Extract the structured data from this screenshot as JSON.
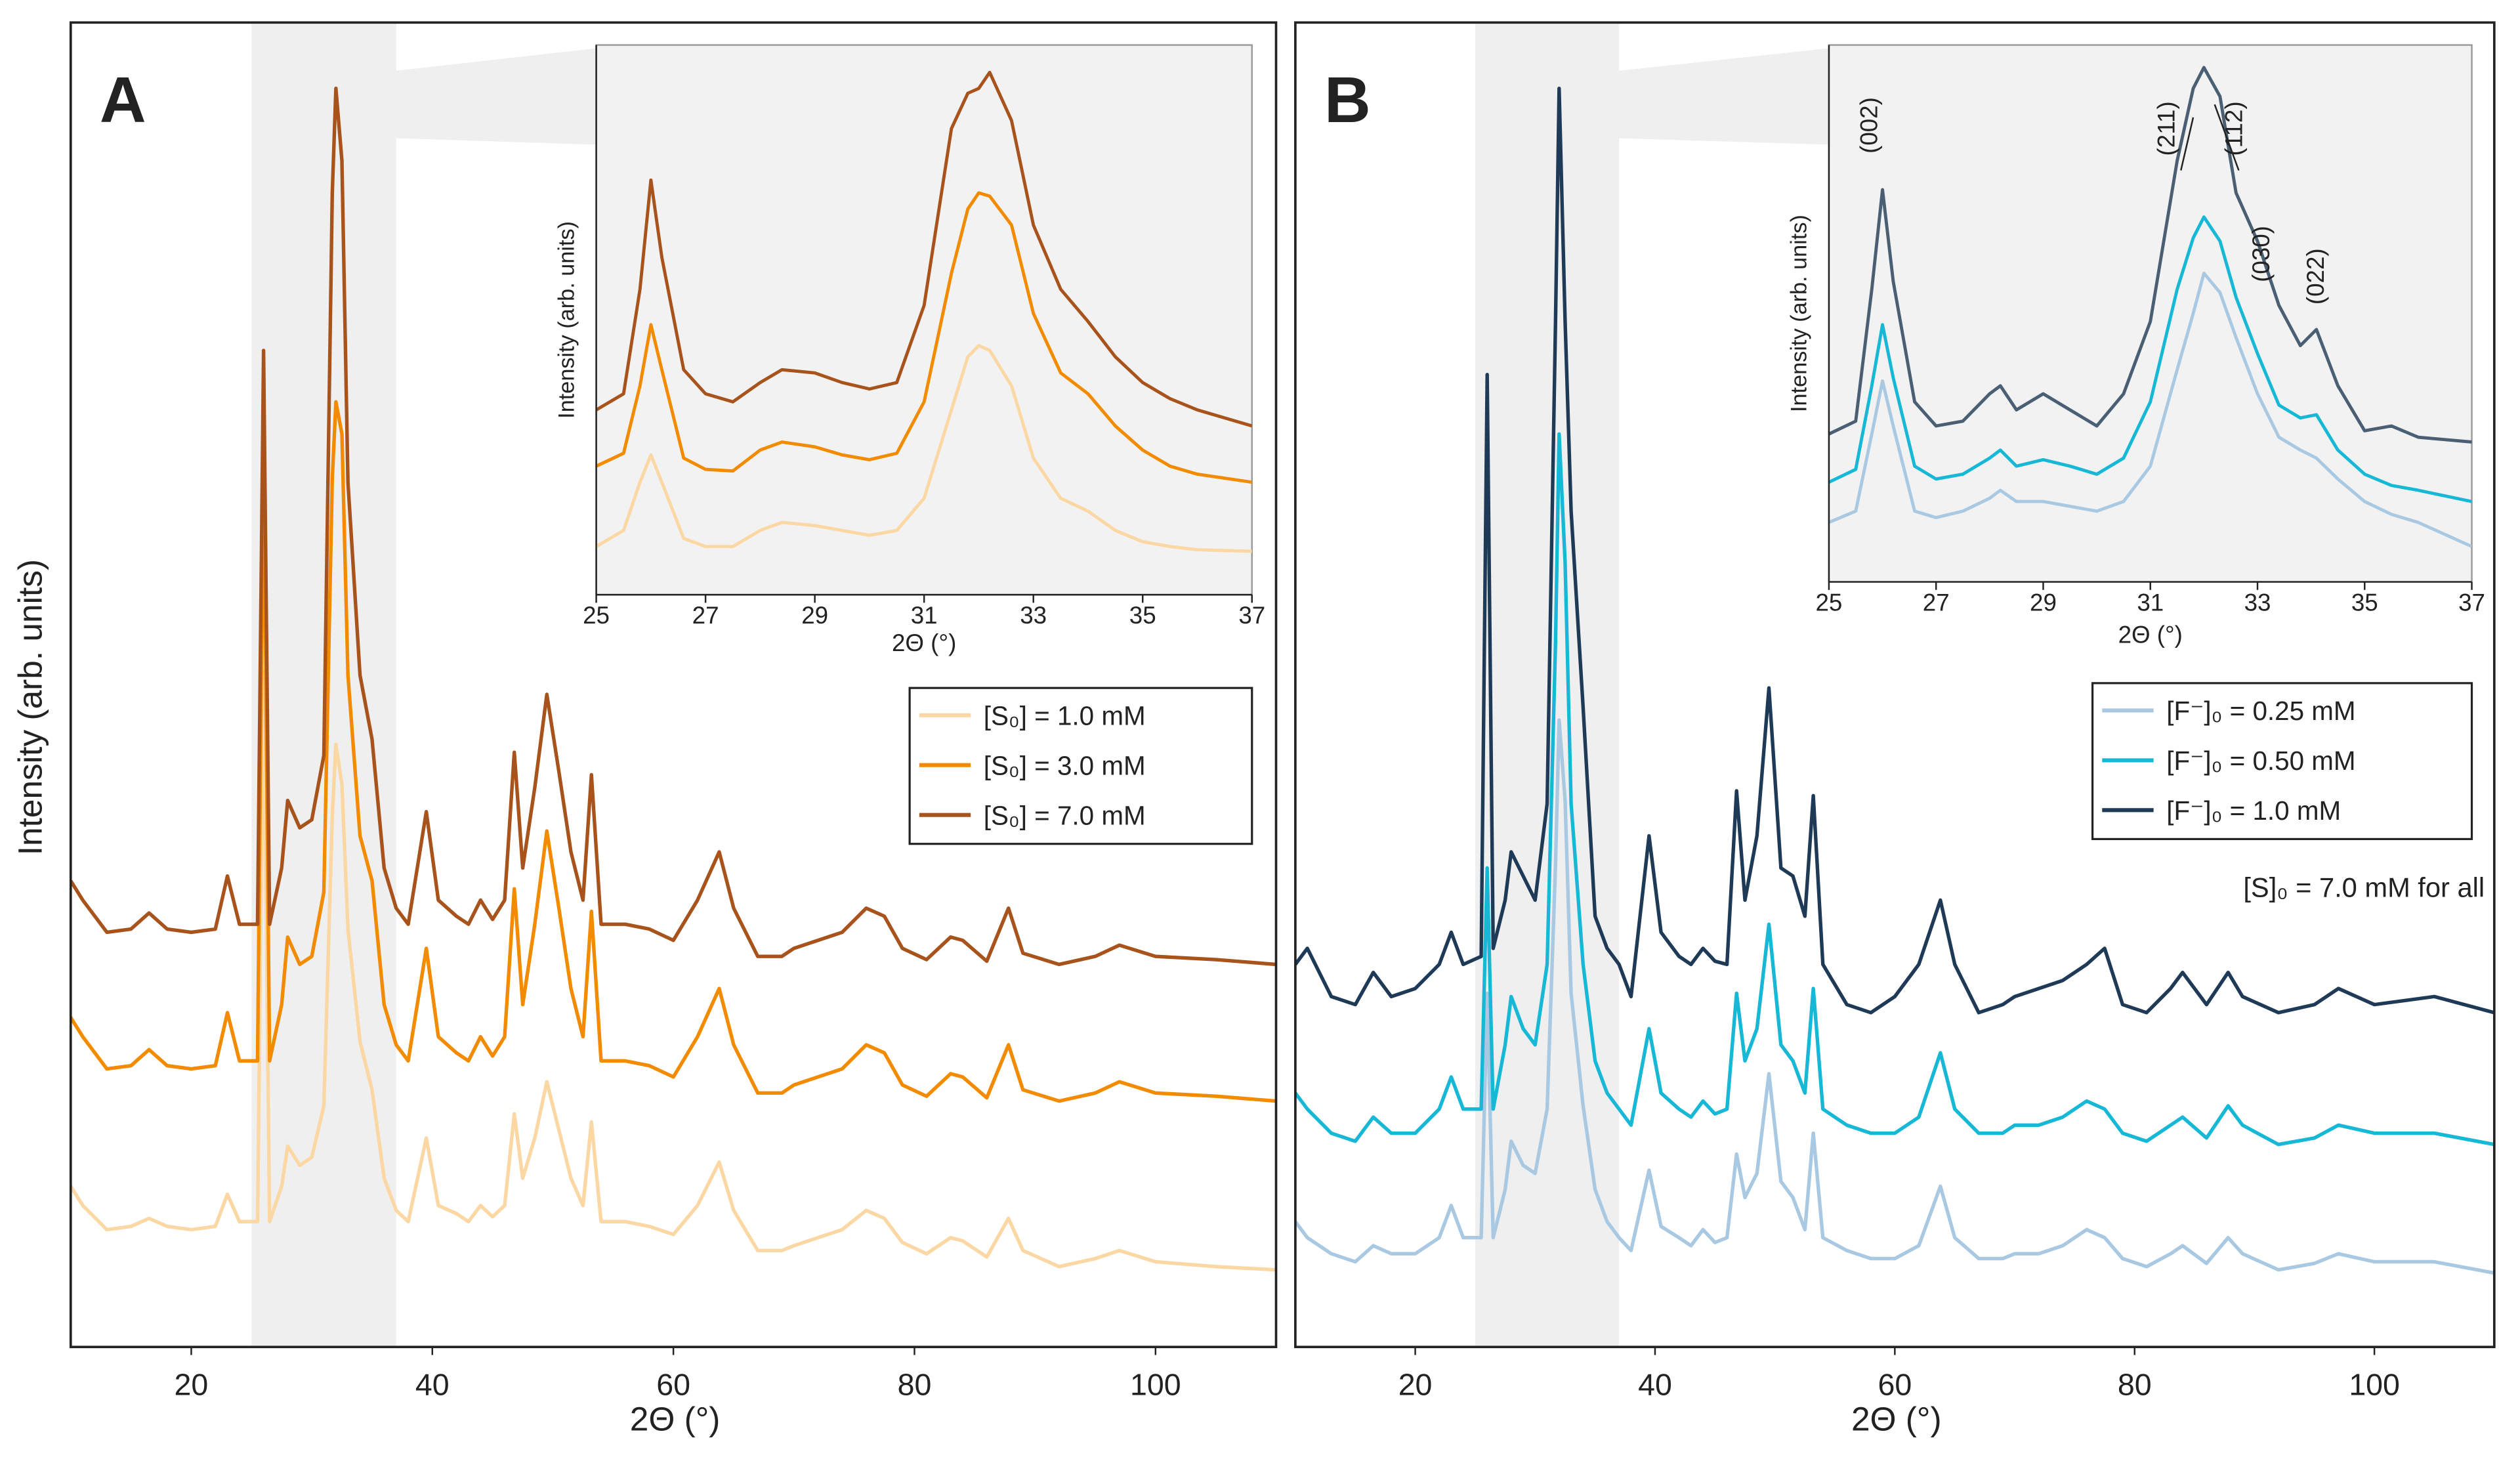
{
  "chart_data": [
    {
      "type": "line",
      "panel_label": "A",
      "xlabel": "2Θ (°)",
      "ylabel": "Intensity (arb. units)",
      "x": [
        10,
        11,
        13,
        15,
        16.5,
        18,
        20,
        22,
        23,
        24,
        25.5,
        26,
        26.5,
        27.5,
        28,
        29,
        30,
        31,
        31.7,
        32,
        32.5,
        33,
        34,
        35,
        36,
        37,
        38,
        39.5,
        40.5,
        42,
        43,
        44,
        45,
        46,
        46.8,
        47.5,
        48.5,
        49.5,
        50.5,
        51.5,
        52.5,
        53.2,
        54,
        56,
        58,
        60,
        62,
        63.8,
        65,
        67,
        69,
        70,
        72,
        74,
        76,
        77.5,
        79,
        81,
        83,
        84,
        86,
        87.8,
        89,
        92,
        95,
        97,
        100,
        105,
        110
      ],
      "series": [
        {
          "name": "[S₀] = 1.0 mM",
          "color": "#fbd7a4",
          "values": [
            100,
            88,
            73,
            75,
            80,
            75,
            73,
            75,
            95,
            78,
            78,
            420,
            78,
            100,
            125,
            113,
            118,
            150,
            330,
            375,
            350,
            260,
            190,
            160,
            105,
            85,
            78,
            130,
            88,
            83,
            78,
            88,
            81,
            88,
            145,
            105,
            130,
            165,
            135,
            105,
            88,
            140,
            78,
            78,
            75,
            70,
            88,
            115,
            85,
            60,
            60,
            63,
            68,
            73,
            85,
            80,
            65,
            58,
            68,
            66,
            56,
            80,
            60,
            50,
            55,
            60,
            53,
            50,
            48
          ]
        },
        {
          "name": "[S₀] = 3.0 mM",
          "color": "#f38b00",
          "values": [
            205,
            193,
            173,
            175,
            185,
            175,
            173,
            175,
            208,
            178,
            178,
            560,
            178,
            213,
            255,
            238,
            243,
            283,
            540,
            588,
            568,
            418,
            318,
            290,
            213,
            188,
            178,
            248,
            193,
            183,
            178,
            193,
            181,
            193,
            285,
            213,
            263,
            321,
            273,
            223,
            193,
            271,
            178,
            178,
            175,
            168,
            193,
            223,
            188,
            158,
            158,
            163,
            168,
            173,
            188,
            183,
            163,
            156,
            170,
            168,
            155,
            188,
            160,
            153,
            158,
            165,
            158,
            156,
            153
          ]
        },
        {
          "name": "[S₀] = 7.0 mM",
          "color": "#a8531b",
          "values": [
            290,
            278,
            258,
            260,
            270,
            260,
            258,
            260,
            293,
            263,
            263,
            620,
            263,
            298,
            340,
            323,
            328,
            368,
            718,
            783,
            738,
            538,
            418,
            378,
            298,
            273,
            263,
            333,
            278,
            268,
            263,
            278,
            266,
            278,
            370,
            298,
            348,
            406,
            358,
            308,
            278,
            356,
            263,
            263,
            260,
            253,
            278,
            308,
            273,
            243,
            243,
            248,
            253,
            258,
            273,
            268,
            248,
            241,
            255,
            253,
            240,
            273,
            245,
            238,
            243,
            250,
            243,
            241,
            238
          ]
        }
      ],
      "xlim": [
        10,
        110
      ],
      "xticks": [
        20,
        40,
        60,
        80,
        100
      ],
      "ylim": [
        0,
        824
      ],
      "legend": "right"
    },
    {
      "type": "line",
      "xlabel": "2Θ (°)",
      "ylabel": "Intensity (arb. units)",
      "x": [
        25,
        25.5,
        25.8,
        26,
        26.2,
        26.6,
        27,
        27.5,
        28,
        28.4,
        29,
        29.5,
        30,
        30.5,
        31,
        31.5,
        31.8,
        32,
        32.2,
        32.6,
        33,
        33.5,
        34,
        34.5,
        35,
        35.5,
        36,
        37
      ],
      "series": [
        {
          "name": "[S₀] = 1.0 mM",
          "color": "#fbd7a4",
          "values": [
            30,
            40,
            70,
            87,
            70,
            35,
            30,
            30,
            40,
            45,
            43,
            40,
            37,
            40,
            60,
            115,
            148,
            155,
            152,
            130,
            85,
            60,
            52,
            40,
            33,
            30,
            28,
            27
          ]
        },
        {
          "name": "[S₀] = 3.0 mM",
          "color": "#f38b00",
          "values": [
            80,
            88,
            130,
            168,
            140,
            85,
            78,
            77,
            90,
            95,
            92,
            87,
            84,
            88,
            120,
            200,
            240,
            250,
            248,
            230,
            175,
            138,
            125,
            105,
            90,
            80,
            75,
            70
          ]
        },
        {
          "name": "[S₀] = 7.0 mM",
          "color": "#a8531b",
          "values": [
            115,
            125,
            190,
            258,
            210,
            140,
            125,
            120,
            132,
            140,
            138,
            132,
            128,
            132,
            180,
            290,
            312,
            315,
            325,
            295,
            230,
            190,
            170,
            148,
            132,
            122,
            115,
            105
          ]
        }
      ],
      "xlim": [
        25,
        37
      ],
      "xticks": [
        25,
        27,
        29,
        31,
        33,
        35,
        37
      ],
      "ylim": [
        0,
        342
      ]
    },
    {
      "type": "line",
      "panel_label": "B",
      "xlabel": "2Θ (°)",
      "note": "[S]₀ = 7.0 mM for all",
      "x": [
        10,
        11,
        13,
        15,
        16.5,
        18,
        20,
        22,
        23,
        24,
        25.5,
        26,
        26.5,
        27.5,
        28,
        29,
        30,
        31,
        31.7,
        32,
        32.5,
        33,
        34,
        35,
        36,
        37,
        38,
        39.5,
        40.5,
        42,
        43,
        44,
        45,
        46,
        46.8,
        47.5,
        48.5,
        49.5,
        50.5,
        51.5,
        52.5,
        53.2,
        54,
        56,
        58,
        60,
        62,
        63.8,
        65,
        67,
        69,
        70,
        72,
        74,
        76,
        77.5,
        79,
        81,
        83,
        84,
        86,
        87.8,
        89,
        92,
        95,
        97,
        100,
        105,
        110
      ],
      "series": [
        {
          "name": "[F⁻]₀ = 0.25 mM",
          "color": "#a9c9e3",
          "values": [
            78,
            68,
            58,
            53,
            63,
            58,
            58,
            68,
            88,
            68,
            68,
            220,
            68,
            98,
            128,
            113,
            108,
            148,
            300,
            390,
            340,
            220,
            150,
            98,
            78,
            68,
            60,
            110,
            75,
            68,
            63,
            73,
            65,
            68,
            120,
            93,
            108,
            170,
            103,
            93,
            73,
            133,
            68,
            60,
            55,
            55,
            63,
            100,
            68,
            55,
            55,
            58,
            58,
            63,
            73,
            68,
            55,
            50,
            58,
            63,
            52,
            68,
            58,
            48,
            52,
            58,
            53,
            53,
            46
          ]
        },
        {
          "name": "[F⁻]₀ = 0.50 mM",
          "color": "#16b8d6",
          "values": [
            158,
            148,
            133,
            128,
            143,
            133,
            133,
            148,
            168,
            148,
            148,
            298,
            148,
            188,
            218,
            198,
            188,
            238,
            438,
            568,
            488,
            338,
            238,
            178,
            158,
            148,
            138,
            198,
            158,
            148,
            143,
            153,
            145,
            148,
            220,
            178,
            198,
            263,
            188,
            178,
            158,
            223,
            148,
            138,
            133,
            133,
            143,
            183,
            148,
            133,
            133,
            138,
            138,
            143,
            153,
            148,
            133,
            128,
            138,
            143,
            130,
            150,
            138,
            126,
            130,
            138,
            133,
            133,
            126
          ]
        },
        {
          "name": "[F⁻]₀ = 1.0 mM",
          "color": "#1e3a56",
          "values": [
            238,
            248,
            218,
            213,
            233,
            218,
            223,
            238,
            258,
            238,
            243,
            605,
            248,
            278,
            308,
            293,
            278,
            338,
            638,
            783,
            638,
            520,
            398,
            268,
            248,
            238,
            218,
            318,
            258,
            243,
            238,
            248,
            240,
            238,
            346,
            278,
            318,
            410,
            298,
            293,
            268,
            343,
            238,
            213,
            208,
            218,
            238,
            278,
            238,
            208,
            213,
            218,
            223,
            228,
            238,
            248,
            213,
            208,
            223,
            233,
            213,
            233,
            218,
            208,
            213,
            223,
            213,
            218,
            208
          ]
        }
      ],
      "xlim": [
        10,
        110
      ],
      "xticks": [
        20,
        40,
        60,
        80,
        100
      ],
      "ylim": [
        0,
        824
      ],
      "legend": "right"
    },
    {
      "type": "line",
      "xlabel": "2Θ (°)",
      "ylabel": "Intensity (arb. units)",
      "x": [
        25,
        25.5,
        25.8,
        26,
        26.2,
        26.6,
        27,
        27.5,
        28,
        28.2,
        28.5,
        29,
        29.5,
        30,
        30.5,
        31,
        31.5,
        31.8,
        32,
        32.3,
        32.6,
        33,
        33.4,
        33.8,
        34.1,
        34.5,
        35,
        35.5,
        36,
        37
      ],
      "series": [
        {
          "name": "[F⁻]₀ = 0.25 mM",
          "color": "#a9c9e3",
          "values": [
            37,
            44,
            92,
            125,
            97,
            44,
            40,
            44,
            52,
            57,
            50,
            50,
            47,
            44,
            50,
            72,
            132,
            167,
            192,
            180,
            152,
            117,
            90,
            82,
            77,
            64,
            50,
            42,
            37,
            22
          ]
        },
        {
          "name": "[F⁻]₀ = 0.50 mM",
          "color": "#16b8d6",
          "values": [
            62,
            70,
            122,
            160,
            127,
            72,
            64,
            67,
            77,
            82,
            72,
            76,
            72,
            67,
            77,
            112,
            182,
            214,
            227,
            212,
            177,
            142,
            110,
            102,
            104,
            82,
            67,
            60,
            57,
            50
          ]
        },
        {
          "name": "[F⁻]₀ = 1.0 mM",
          "color": "#4a5f73",
          "values": [
            92,
            100,
            182,
            244,
            187,
            112,
            97,
            100,
            117,
            122,
            107,
            117,
            107,
            97,
            117,
            162,
            262,
            307,
            320,
            302,
            242,
            212,
            172,
            147,
            157,
            122,
            94,
            97,
            90,
            87
          ]
        }
      ],
      "xlim": [
        25,
        37
      ],
      "xticks": [
        25,
        27,
        29,
        31,
        33,
        35,
        37
      ],
      "ylim": [
        0,
        334
      ],
      "annotations": [
        "(002)",
        "(211)",
        "(112)",
        "(030)",
        "(022)"
      ]
    }
  ]
}
